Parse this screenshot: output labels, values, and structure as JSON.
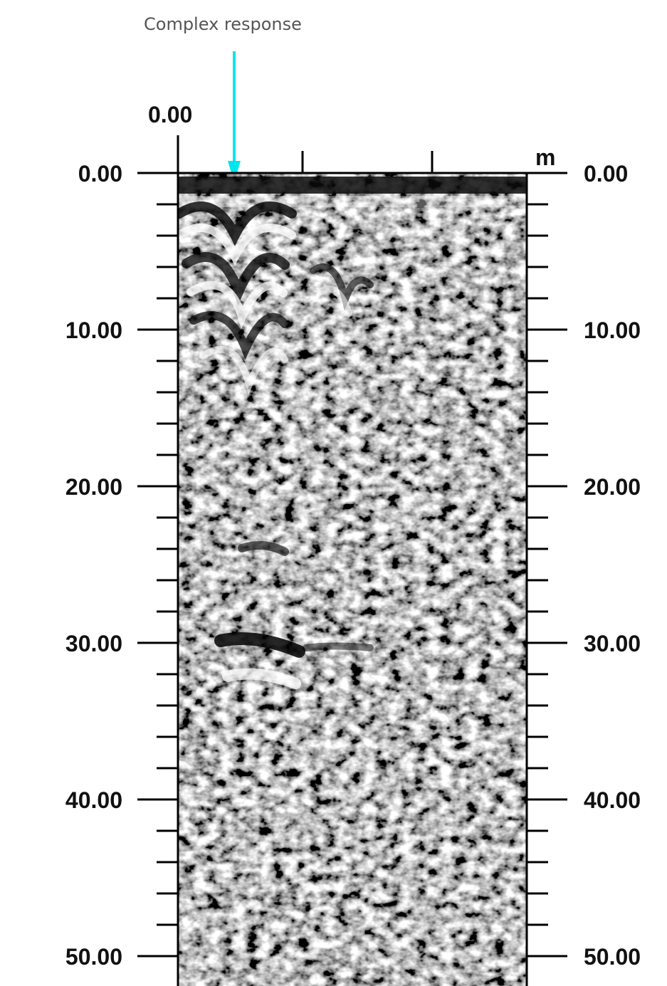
{
  "annotation": {
    "text": "Complex response",
    "arrow_color": "#00e5ee"
  },
  "top_axis": {
    "origin_label": "0.00",
    "unit_label": "m"
  },
  "depth_axis": {
    "labels": [
      "0.00",
      "10.00",
      "20.00",
      "30.00",
      "40.00",
      "50.00"
    ],
    "major_values": [
      0,
      10,
      20,
      30,
      40,
      50
    ],
    "minor_per_major": 4
  },
  "radargram": {
    "description_colors": [
      "#000000",
      "#808080",
      "#ffffff"
    ]
  }
}
